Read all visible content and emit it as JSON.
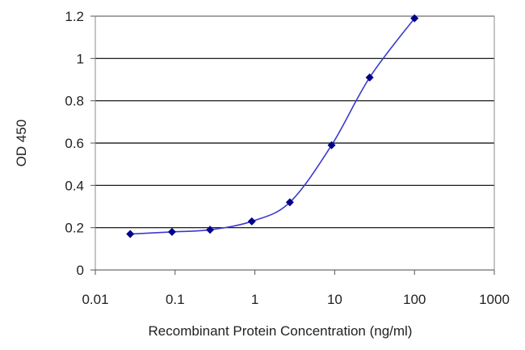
{
  "chart_data": {
    "type": "line",
    "title": "",
    "xlabel": "Recombinant Protein Concentration (ng/ml)",
    "ylabel": "OD 450",
    "x_scale": "log",
    "xlim": [
      0.01,
      1000
    ],
    "ylim": [
      0,
      1.2
    ],
    "x_ticks": [
      "0.01",
      "0.1",
      "1",
      "10",
      "100",
      "1000"
    ],
    "y_ticks": [
      "0",
      "0.2",
      "0.4",
      "0.6",
      "0.8",
      "1",
      "1.2"
    ],
    "grid": "horizontal",
    "legend": "none",
    "series": [
      {
        "x": [
          0.0274,
          0.0914,
          0.274,
          0.914,
          2.74,
          9.14,
          27.4,
          100
        ],
        "y": [
          0.17,
          0.18,
          0.19,
          0.23,
          0.32,
          0.59,
          0.91,
          1.19
        ]
      }
    ],
    "colors": {
      "line": "#3a3ad0",
      "marker": "#00008b",
      "grid": "#000000",
      "plot_bg": "#ffffff"
    }
  }
}
